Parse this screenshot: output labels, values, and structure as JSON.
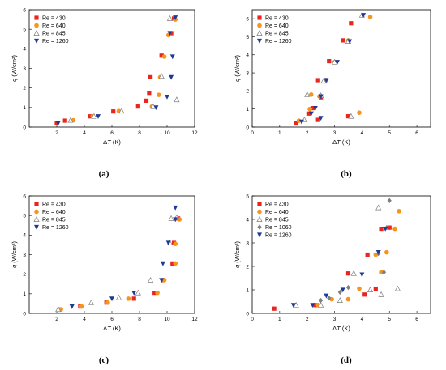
{
  "colors": {
    "Re = 430": "#e8251e",
    "Re = 640": "#f7941d",
    "Re = 845": "#7f7f7f",
    "Re = 1060": "#7f7f7f",
    "Re = 1260": "#1f3a93"
  },
  "markers": {
    "Re = 430": "square",
    "Re = 640": "circle",
    "Re = 845": "triangle-open",
    "Re = 1060": "diamond",
    "Re = 1260": "triangle-down"
  },
  "chart_data": [
    {
      "type": "scatter",
      "panel_label": "(a)",
      "xlabel": "ΔT (K)",
      "ylabel": "q (W/cm²)",
      "xlim": [
        0,
        12
      ],
      "ylim": [
        0,
        6
      ],
      "xticks": [
        2,
        4,
        6,
        8,
        10,
        12
      ],
      "yticks": [
        0,
        1,
        2,
        3,
        4,
        5,
        6
      ],
      "legend_placement": "top-left",
      "series": [
        {
          "name": "Re = 430",
          "points": [
            [
              2.0,
              0.22
            ],
            [
              2.6,
              0.33
            ],
            [
              4.4,
              0.55
            ],
            [
              6.1,
              0.8
            ],
            [
              7.9,
              1.05
            ],
            [
              8.5,
              1.35
            ],
            [
              8.7,
              1.75
            ],
            [
              8.8,
              2.55
            ],
            [
              9.6,
              3.65
            ],
            [
              10.3,
              4.8
            ],
            [
              10.5,
              5.55
            ]
          ]
        },
        {
          "name": "Re = 640",
          "points": [
            [
              3.2,
              0.35
            ],
            [
              4.6,
              0.55
            ],
            [
              6.5,
              0.82
            ],
            [
              8.9,
              1.05
            ],
            [
              9.4,
              1.65
            ],
            [
              9.5,
              2.55
            ],
            [
              9.8,
              3.6
            ],
            [
              10.1,
              4.7
            ],
            [
              10.6,
              5.5
            ]
          ]
        },
        {
          "name": "Re = 845",
          "points": [
            [
              3.0,
              0.35
            ],
            [
              4.7,
              0.55
            ],
            [
              6.7,
              0.82
            ],
            [
              9.0,
              1.05
            ],
            [
              9.6,
              2.6
            ],
            [
              10.2,
              5.55
            ],
            [
              10.7,
              1.4
            ]
          ]
        },
        {
          "name": "Re = 1260",
          "points": [
            [
              2.1,
              0.2
            ],
            [
              5.0,
              0.55
            ],
            [
              9.2,
              1.0
            ],
            [
              10.0,
              1.55
            ],
            [
              10.3,
              2.55
            ],
            [
              10.4,
              3.6
            ],
            [
              10.2,
              4.8
            ],
            [
              10.6,
              5.6
            ]
          ]
        }
      ]
    },
    {
      "type": "scatter",
      "panel_label": "(b)",
      "xlabel": "ΔT (K)",
      "ylabel": "q (W/cm²)",
      "xlim": [
        0,
        6.5
      ],
      "ylim": [
        0,
        6.5
      ],
      "xticks": [
        0,
        1,
        2,
        3,
        4,
        5,
        6
      ],
      "yticks": [
        0,
        1,
        2,
        3,
        4,
        5,
        6
      ],
      "legend_placement": "top-left",
      "series": [
        {
          "name": "Re = 430",
          "points": [
            [
              1.6,
              0.2
            ],
            [
              2.05,
              0.75
            ],
            [
              2.2,
              1.05
            ],
            [
              2.4,
              0.4
            ],
            [
              2.5,
              1.65
            ],
            [
              2.4,
              2.6
            ],
            [
              2.8,
              3.65
            ],
            [
              3.3,
              4.8
            ],
            [
              3.5,
              0.6
            ],
            [
              3.6,
              5.75
            ]
          ]
        },
        {
          "name": "Re = 640",
          "points": [
            [
              1.7,
              0.35
            ],
            [
              2.1,
              1.0
            ],
            [
              2.15,
              1.8
            ],
            [
              2.45,
              1.7
            ],
            [
              2.7,
              2.6
            ],
            [
              3.0,
              3.6
            ],
            [
              3.5,
              4.8
            ],
            [
              3.9,
              0.8
            ],
            [
              4.3,
              6.1
            ]
          ]
        },
        {
          "name": "Re = 845",
          "points": [
            [
              1.9,
              0.4
            ],
            [
              2.0,
              1.8
            ],
            [
              2.5,
              1.75
            ],
            [
              2.6,
              2.55
            ],
            [
              3.0,
              3.6
            ],
            [
              3.6,
              0.6
            ],
            [
              3.5,
              4.75
            ],
            [
              4.0,
              6.2
            ]
          ]
        },
        {
          "name": "Re = 1260",
          "points": [
            [
              1.8,
              0.3
            ],
            [
              2.15,
              0.75
            ],
            [
              2.3,
              1.05
            ],
            [
              2.5,
              0.5
            ],
            [
              2.5,
              1.7
            ],
            [
              2.7,
              2.6
            ],
            [
              3.1,
              3.6
            ],
            [
              3.55,
              4.75
            ],
            [
              4.05,
              6.2
            ]
          ]
        }
      ]
    },
    {
      "type": "scatter",
      "panel_label": "(c)",
      "xlabel": "ΔT (K)",
      "ylabel": "q (W/cm²)",
      "xlim": [
        0,
        12
      ],
      "ylim": [
        0,
        6
      ],
      "xticks": [
        2,
        4,
        6,
        8,
        10,
        12
      ],
      "yticks": [
        0,
        1,
        2,
        3,
        4,
        5,
        6
      ],
      "legend_placement": "top-left",
      "series": [
        {
          "name": "Re = 430",
          "points": [
            [
              2.2,
              0.2
            ],
            [
              3.7,
              0.35
            ],
            [
              5.6,
              0.55
            ],
            [
              7.6,
              0.75
            ],
            [
              9.1,
              1.05
            ],
            [
              9.7,
              1.7
            ],
            [
              10.4,
              2.55
            ],
            [
              10.5,
              3.6
            ],
            [
              10.8,
              4.85
            ]
          ]
        },
        {
          "name": "Re = 640",
          "points": [
            [
              2.3,
              0.2
            ],
            [
              3.8,
              0.35
            ],
            [
              5.7,
              0.55
            ],
            [
              7.2,
              0.75
            ],
            [
              9.3,
              1.05
            ],
            [
              9.8,
              1.7
            ],
            [
              10.6,
              2.55
            ],
            [
              10.6,
              3.55
            ],
            [
              10.9,
              4.8
            ]
          ]
        },
        {
          "name": "Re = 845",
          "points": [
            [
              2.1,
              0.2
            ],
            [
              4.5,
              0.55
            ],
            [
              6.5,
              0.8
            ],
            [
              7.9,
              1.05
            ],
            [
              8.8,
              1.7
            ],
            [
              10.2,
              3.6
            ],
            [
              10.3,
              4.85
            ],
            [
              10.7,
              4.9
            ]
          ]
        },
        {
          "name": "Re = 1260",
          "points": [
            [
              3.1,
              0.35
            ],
            [
              6.0,
              0.75
            ],
            [
              7.6,
              1.05
            ],
            [
              9.6,
              1.7
            ],
            [
              9.7,
              2.55
            ],
            [
              10.1,
              3.6
            ],
            [
              10.6,
              4.8
            ],
            [
              10.6,
              5.4
            ]
          ]
        }
      ]
    },
    {
      "type": "scatter",
      "panel_label": "(d)",
      "xlabel": "ΔT (K)",
      "ylabel": "q (W/cm²)",
      "xlim": [
        0,
        6.5
      ],
      "ylim": [
        0,
        5
      ],
      "xticks": [
        0,
        1,
        2,
        3,
        4,
        5,
        6
      ],
      "yticks": [
        0,
        1,
        2,
        3,
        4,
        5
      ],
      "legend_placement": "top-left",
      "series": [
        {
          "name": "Re = 430",
          "points": [
            [
              0.8,
              0.2
            ],
            [
              2.3,
              0.35
            ],
            [
              3.5,
              1.7
            ],
            [
              4.1,
              0.8
            ],
            [
              4.2,
              2.5
            ],
            [
              4.5,
              1.05
            ],
            [
              4.7,
              3.6
            ],
            [
              5.0,
              3.65
            ]
          ]
        },
        {
          "name": "Re = 640",
          "points": [
            [
              2.4,
              0.35
            ],
            [
              2.9,
              0.6
            ],
            [
              3.5,
              0.6
            ],
            [
              3.9,
              1.05
            ],
            [
              4.5,
              2.5
            ],
            [
              4.7,
              1.75
            ],
            [
              4.9,
              2.6
            ],
            [
              5.2,
              3.6
            ],
            [
              5.35,
              4.35
            ]
          ]
        },
        {
          "name": "Re = 845",
          "points": [
            [
              1.6,
              0.35
            ],
            [
              2.5,
              0.35
            ],
            [
              3.2,
              0.55
            ],
            [
              3.7,
              1.7
            ],
            [
              4.3,
              1.0
            ],
            [
              4.6,
              4.5
            ],
            [
              4.7,
              0.8
            ],
            [
              5.3,
              1.05
            ]
          ]
        },
        {
          "name": "Re = 1060",
          "points": [
            [
              2.5,
              0.55
            ],
            [
              2.8,
              0.65
            ],
            [
              3.2,
              0.9
            ],
            [
              3.5,
              1.1
            ],
            [
              4.6,
              2.55
            ],
            [
              4.8,
              1.75
            ],
            [
              4.9,
              3.65
            ],
            [
              5.0,
              4.8
            ]
          ]
        },
        {
          "name": "Re = 1260",
          "points": [
            [
              1.5,
              0.35
            ],
            [
              2.2,
              0.35
            ],
            [
              2.7,
              0.75
            ],
            [
              3.3,
              1.0
            ],
            [
              4.0,
              1.65
            ],
            [
              4.6,
              2.6
            ],
            [
              4.85,
              3.6
            ]
          ]
        }
      ]
    }
  ]
}
